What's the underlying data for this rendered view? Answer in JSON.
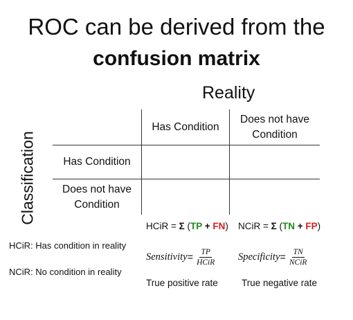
{
  "title": {
    "line1": "ROC can be derived from the",
    "line2": "confusion matrix"
  },
  "matrix": {
    "columns_heading": "Reality",
    "rows_heading": "Classification",
    "col_headers": [
      "Has Condition",
      "Does not have Condition"
    ],
    "row_headers": [
      "Has Condition",
      "Does not have Condition"
    ]
  },
  "formulas": {
    "hcir": {
      "prefix": "HCiR = ",
      "sigma": "Σ",
      "open": " (",
      "tp": "TP",
      "plus": " + ",
      "fn": "FN",
      "close": ")"
    },
    "ncir": {
      "prefix": "NCiR = ",
      "sigma": "Σ",
      "open": " (",
      "tn": "TN",
      "plus": " + ",
      "fp": "FP",
      "close": ")"
    }
  },
  "legend": {
    "hcir": "HCiR: Has condition in reality",
    "ncir": "NCiR: No condition in reality"
  },
  "measures": {
    "sensitivity": {
      "label": "Sensitivity",
      "eq": " =",
      "numerator": "TP",
      "denominator": "HCiR",
      "rate": "True positive rate"
    },
    "specificity": {
      "label": "Specificity",
      "eq": " =",
      "numerator": "TN",
      "denominator": "NCiR",
      "rate": "True negative rate"
    }
  },
  "colors": {
    "positive_term": "#1e8b1e",
    "negative_term": "#d81e1e",
    "grid": "#333333"
  }
}
